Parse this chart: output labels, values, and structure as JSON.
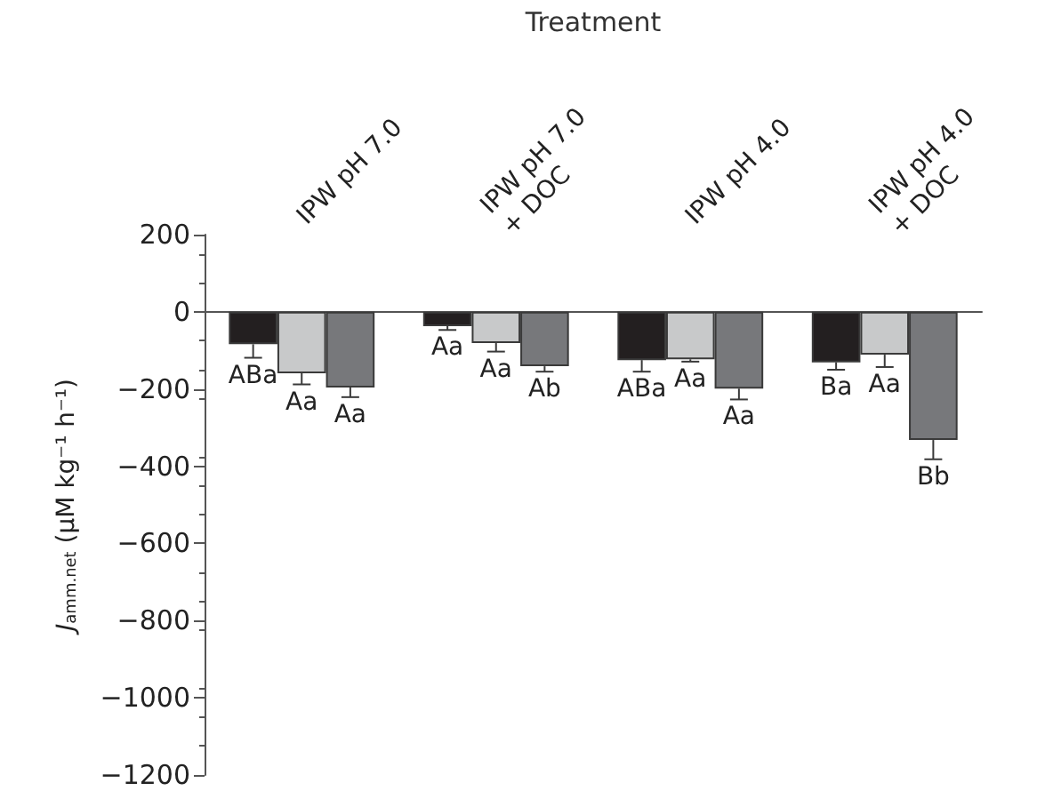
{
  "chart_data": {
    "type": "bar",
    "xlabel": "Treatment",
    "ylabel": "J$_{amm.net}$ (µM kg⁻¹ h⁻¹)",
    "categories": [
      "IPW pH 7.0",
      "IPW pH 7.0\n+ DOC",
      "IPW pH 4.0",
      "IPW pH 4.0\n+ DOC"
    ],
    "series": [
      {
        "color": "#231f20",
        "values": [
          -84,
          -37,
          -125,
          -131
        ],
        "errors": [
          [
            -119,
            -84
          ],
          [
            -47,
            -37
          ],
          [
            -155,
            -125
          ],
          [
            -150,
            -131
          ]
        ],
        "value_labels": [
          "ABa",
          "Aa",
          "ABa",
          "Ba"
        ]
      },
      {
        "color": "#c8c9ca",
        "values": [
          -159,
          -81,
          -123,
          -111
        ],
        "errors": [
          [
            -188,
            -159
          ],
          [
            -103,
            -81
          ],
          [
            -129,
            -123
          ],
          [
            -143,
            -111
          ]
        ],
        "value_labels": [
          "Aa",
          "Aa",
          "Aa",
          "Aa"
        ]
      },
      {
        "color": "#77787b",
        "values": [
          -196,
          -141,
          -199,
          -332
        ],
        "errors": [
          [
            -221,
            -196
          ],
          [
            -155,
            -141
          ],
          [
            -227,
            -199
          ],
          [
            -382,
            -332
          ]
        ],
        "value_labels": [
          "Aa",
          "Ab",
          "Aa",
          "Bb"
        ]
      }
    ],
    "ylim": [
      -1200,
      200
    ],
    "yticks": [
      {
        "value": -1200,
        "label": "−1200"
      },
      {
        "value": -1000,
        "label": "−1000"
      },
      {
        "value": -800,
        "label": "−800"
      },
      {
        "value": -600,
        "label": "−600"
      },
      {
        "value": -400,
        "label": "−400"
      },
      {
        "value": -200,
        "label": "−200"
      },
      0,
      200
    ],
    "tick_labels": "xy"
  }
}
